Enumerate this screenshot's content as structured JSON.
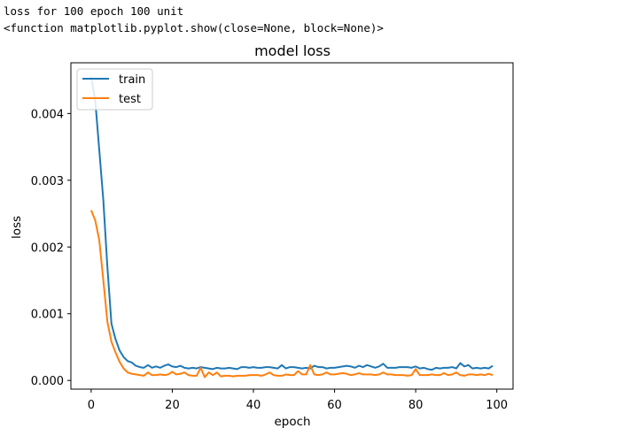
{
  "console": {
    "line1": "loss for 100 epoch 100 unit",
    "line2": "<function matplotlib.pyplot.show(close=None, block=None)>"
  },
  "chart_data": {
    "type": "line",
    "title": "model loss",
    "xlabel": "epoch",
    "ylabel": "loss",
    "xlim": [
      -5,
      104
    ],
    "ylim": [
      -0.00013,
      0.00476
    ],
    "xticks": [
      0,
      20,
      40,
      60,
      80,
      100
    ],
    "yticks": [
      0.0,
      0.001,
      0.002,
      0.003,
      0.004
    ],
    "ytick_labels": [
      "0.000",
      "0.001",
      "0.002",
      "0.003",
      "0.004"
    ],
    "grid": false,
    "legend_position": "top-left",
    "x": [
      0,
      1,
      2,
      3,
      4,
      5,
      6,
      7,
      8,
      9,
      10,
      11,
      12,
      13,
      14,
      15,
      16,
      17,
      18,
      19,
      20,
      21,
      22,
      23,
      24,
      25,
      26,
      27,
      28,
      29,
      30,
      31,
      32,
      33,
      34,
      35,
      36,
      37,
      38,
      39,
      40,
      41,
      42,
      43,
      44,
      45,
      46,
      47,
      48,
      49,
      50,
      51,
      52,
      53,
      54,
      55,
      56,
      57,
      58,
      59,
      60,
      61,
      62,
      63,
      64,
      65,
      66,
      67,
      68,
      69,
      70,
      71,
      72,
      73,
      74,
      75,
      76,
      77,
      78,
      79,
      80,
      81,
      82,
      83,
      84,
      85,
      86,
      87,
      88,
      89,
      90,
      91,
      92,
      93,
      94,
      95,
      96,
      97,
      98,
      99
    ],
    "series": [
      {
        "name": "train",
        "color": "#1f77b4",
        "values": [
          0.00455,
          0.0042,
          0.00345,
          0.0027,
          0.0017,
          0.00085,
          0.00062,
          0.00045,
          0.00035,
          0.00029,
          0.00027,
          0.00022,
          0.0002,
          0.00019,
          0.00023,
          0.00019,
          0.00021,
          0.00019,
          0.00022,
          0.00024,
          0.00021,
          0.0002,
          0.00022,
          0.00019,
          0.00018,
          0.00019,
          0.00018,
          0.0002,
          0.00019,
          0.00018,
          0.00017,
          0.00019,
          0.00018,
          0.00018,
          0.00019,
          0.00018,
          0.00017,
          0.0002,
          0.0002,
          0.00019,
          0.0002,
          0.00019,
          0.00019,
          0.0002,
          0.0002,
          0.00019,
          0.00018,
          0.00023,
          0.00018,
          0.0002,
          0.0002,
          0.00019,
          0.00018,
          0.00019,
          0.00018,
          0.00022,
          0.0002,
          0.0002,
          0.00018,
          0.00019,
          0.00019,
          0.0002,
          0.00021,
          0.00022,
          0.00021,
          0.00019,
          0.00022,
          0.0002,
          0.00023,
          0.00021,
          0.00019,
          0.00021,
          0.00025,
          0.00019,
          0.00019,
          0.00019,
          0.0002,
          0.0002,
          0.0002,
          0.00019,
          0.00021,
          0.00018,
          0.00019,
          0.00017,
          0.00016,
          0.00019,
          0.00018,
          0.00019,
          0.00019,
          0.0002,
          0.00018,
          0.00026,
          0.00021,
          0.00023,
          0.00018,
          0.00019,
          0.00018,
          0.00019,
          0.00018,
          0.00022
        ]
      },
      {
        "name": "test",
        "color": "#ff7f0e",
        "values": [
          0.00255,
          0.0024,
          0.0021,
          0.0015,
          0.00088,
          0.00058,
          0.00042,
          0.00028,
          0.00018,
          0.00012,
          0.0001,
          9e-05,
          8e-05,
          7e-05,
          0.00012,
          8e-05,
          8e-05,
          9e-05,
          8e-05,
          9e-05,
          0.00013,
          9e-05,
          0.0001,
          0.00012,
          8e-05,
          7e-05,
          7e-05,
          0.00019,
          5e-05,
          0.00012,
          8e-05,
          0.00012,
          6e-05,
          7e-05,
          7e-05,
          6e-05,
          7e-05,
          7e-05,
          7e-05,
          8e-05,
          8e-05,
          8e-05,
          7e-05,
          9e-05,
          0.00012,
          8e-05,
          7e-05,
          7e-05,
          9e-05,
          8e-05,
          8e-05,
          0.00014,
          9e-05,
          9e-05,
          0.00023,
          9e-05,
          8e-05,
          9e-05,
          0.00012,
          9e-05,
          9e-05,
          0.0001,
          0.00011,
          0.0001,
          8e-05,
          9e-05,
          0.00011,
          9e-05,
          9e-05,
          9e-05,
          8e-05,
          9e-05,
          0.00012,
          9e-05,
          9e-05,
          8e-05,
          8e-05,
          8e-05,
          7e-05,
          8e-05,
          0.00017,
          8e-05,
          8e-05,
          8e-05,
          9e-05,
          8e-05,
          8e-05,
          0.00011,
          8e-05,
          9e-05,
          0.00012,
          8e-05,
          7e-05,
          9e-05,
          9e-05,
          8e-05,
          9e-05,
          8e-05,
          0.0001,
          8e-05
        ]
      }
    ]
  }
}
